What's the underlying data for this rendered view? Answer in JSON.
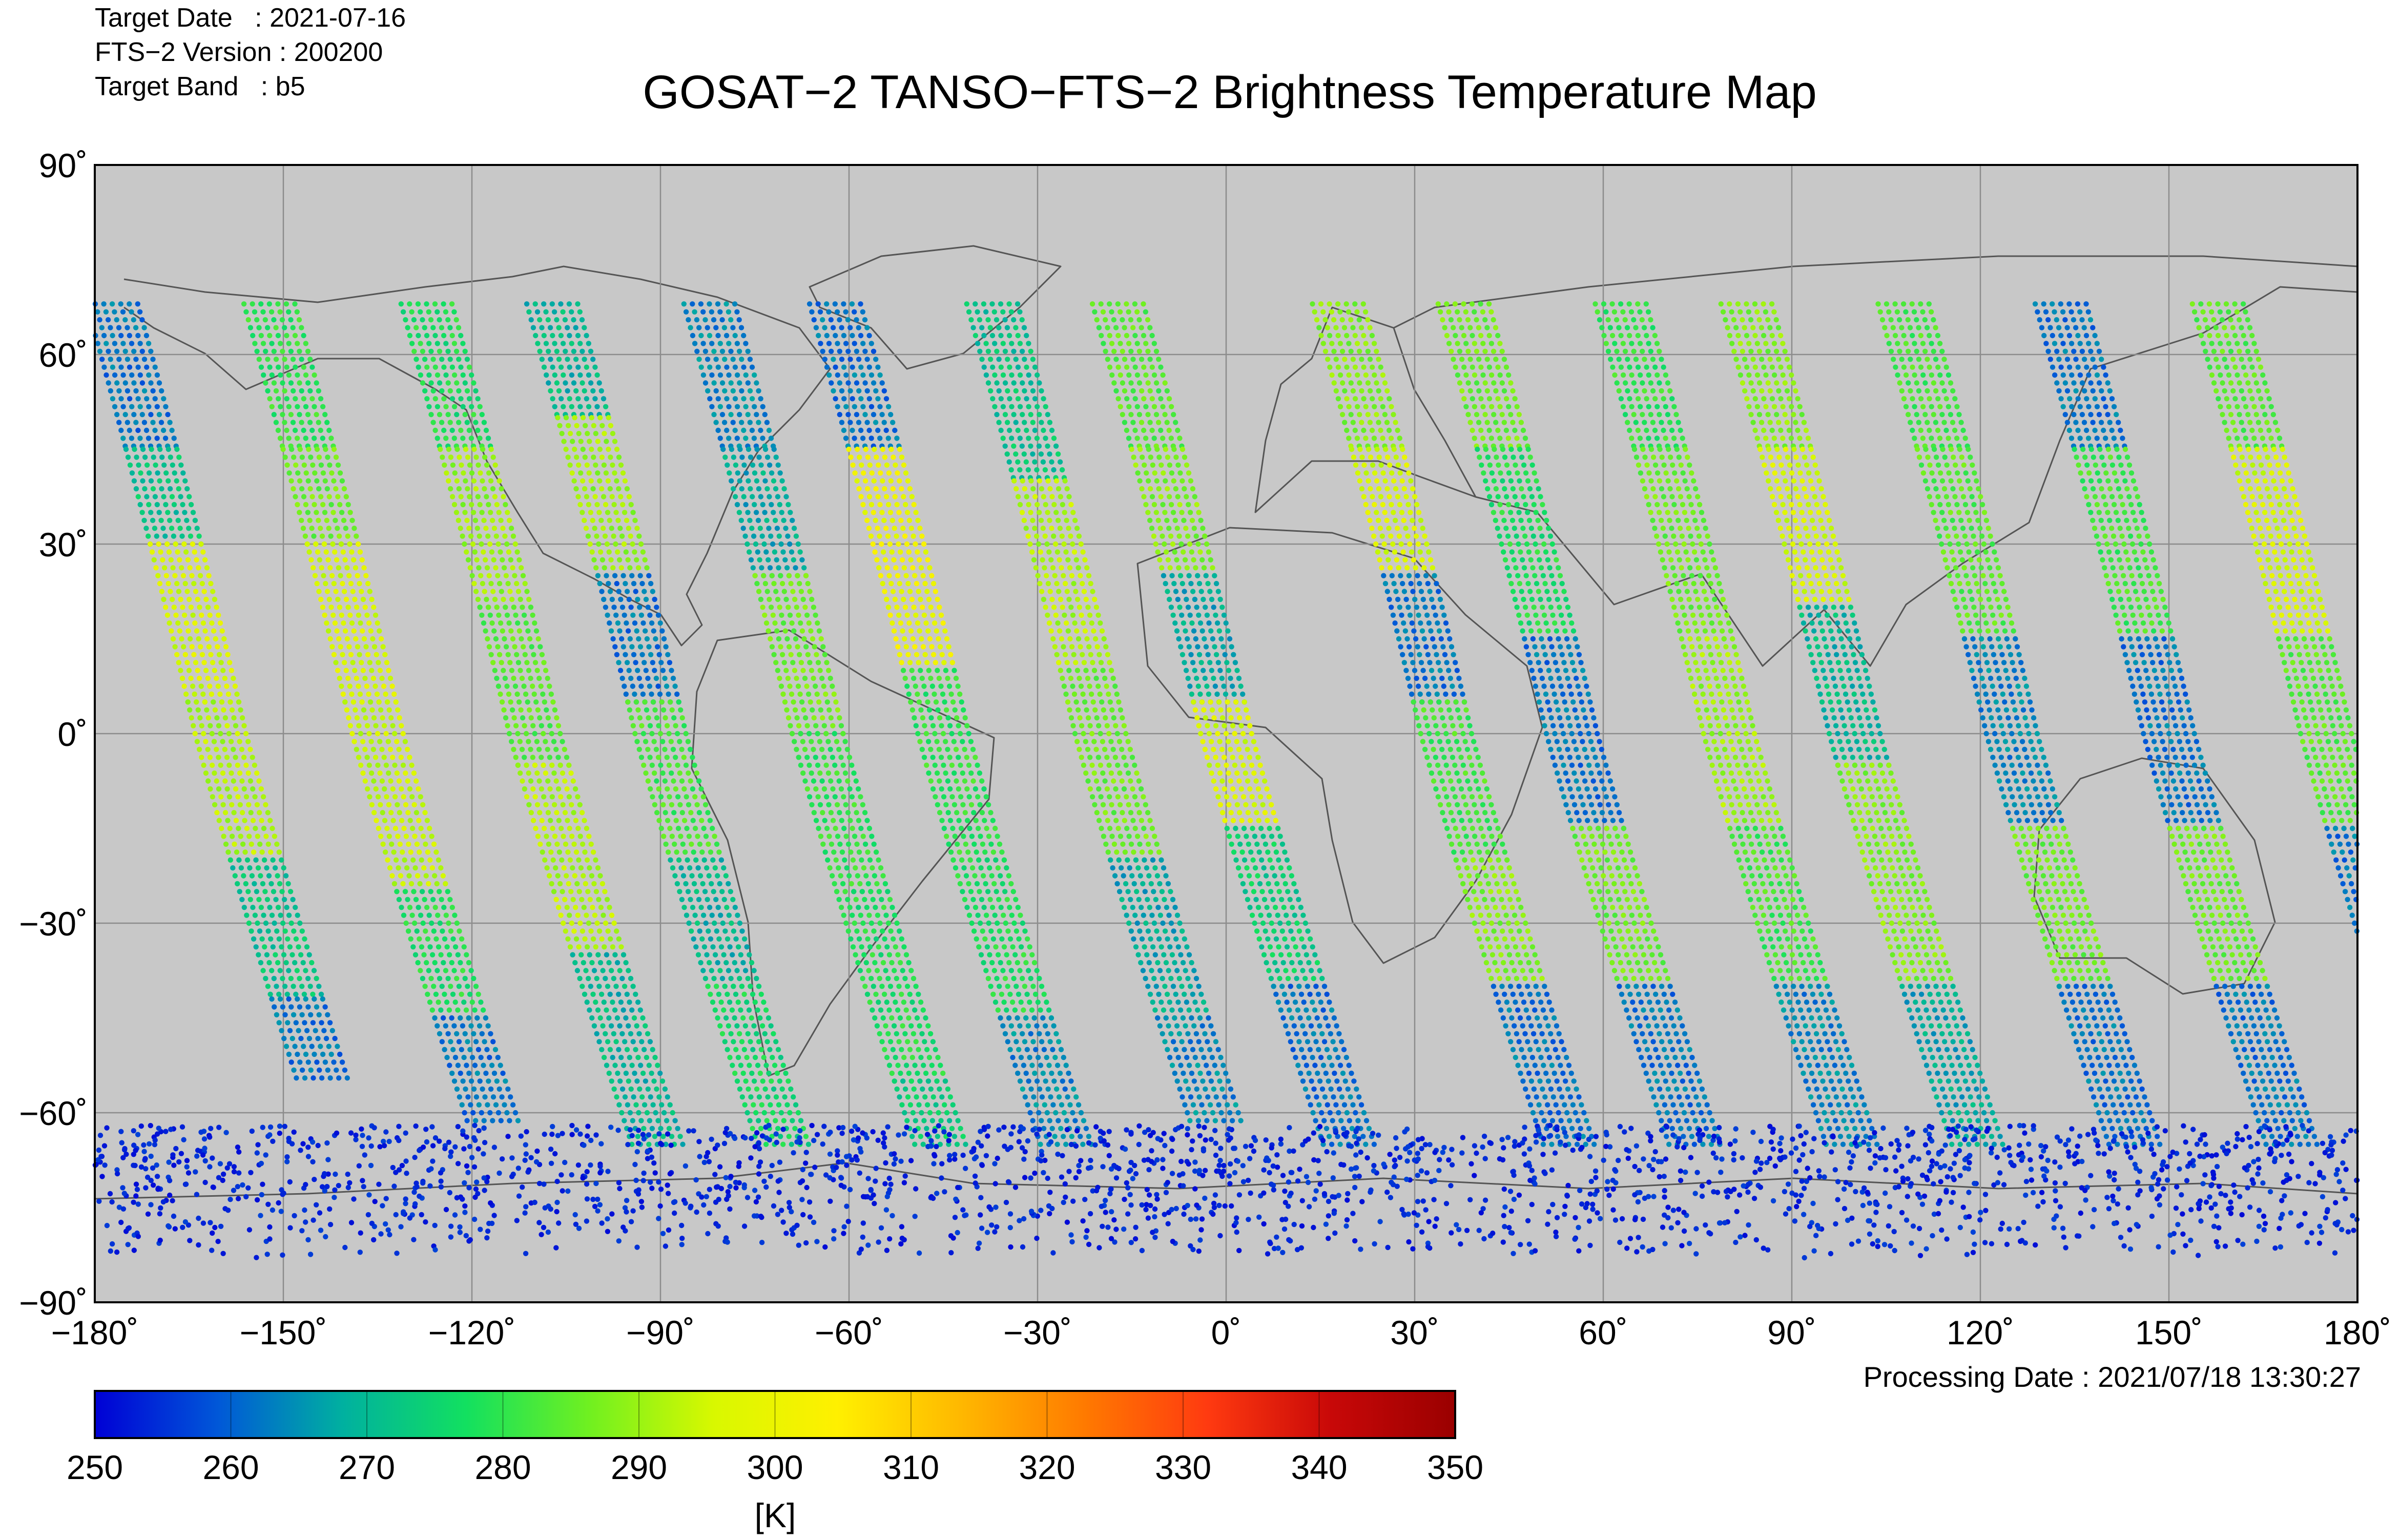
{
  "header": {
    "target_date_label": "Target Date",
    "target_date_value": "2021-07-16",
    "version_label": "FTS−2 Version",
    "version_value": "200200",
    "band_label": "Target Band",
    "band_value": "b5"
  },
  "title": "GOSAT−2 TANSO−FTS−2 Brightness Temperature Map",
  "map": {
    "lon_range": [
      -180,
      180
    ],
    "lat_range": [
      -90,
      90
    ],
    "background_color": "#c8c8c8",
    "grid_color": "#8c8c8c",
    "coast_color": "#555555",
    "x_ticks": [
      "−180˚",
      "−150˚",
      "−120˚",
      "−90˚",
      "−60˚",
      "−30˚",
      "0˚",
      "30˚",
      "60˚",
      "90˚",
      "120˚",
      "150˚",
      "180˚"
    ],
    "y_ticks": [
      "90˚",
      "60˚",
      "30˚",
      "0˚",
      "−30˚",
      "−60˚",
      "−90˚"
    ]
  },
  "processing_date_label": "Processing Date",
  "processing_date_value": "2021/07/18 13:30:27",
  "colorbar": {
    "min": 250,
    "max": 350,
    "tick_labels": [
      "250",
      "260",
      "270",
      "280",
      "290",
      "300",
      "310",
      "320",
      "330",
      "340",
      "350"
    ],
    "unit": "[K]",
    "colors": [
      "#0000d6",
      "#0058d8",
      "#00b0a0",
      "#12e060",
      "#70f020",
      "#d8f800",
      "#fff000",
      "#ffb800",
      "#ff7a00",
      "#ff3a10",
      "#c80808",
      "#9a0000"
    ]
  },
  "chart_data": {
    "type": "scatter",
    "title": "GOSAT−2 TANSO−FTS−2 Brightness Temperature Map",
    "xlabel": "",
    "ylabel": "",
    "xlim": [
      -180,
      180
    ],
    "ylim": [
      -90,
      90
    ],
    "value_unit": "[K]",
    "value_range": [
      250,
      350
    ],
    "swaths": [
      {
        "lon_at_lat60": -175,
        "segments": [
          [
            68,
            45,
            262
          ],
          [
            45,
            30,
            272
          ],
          [
            30,
            5,
            296
          ],
          [
            5,
            -20,
            292
          ],
          [
            -20,
            -42,
            272
          ],
          [
            -42,
            -55,
            262
          ]
        ]
      },
      {
        "lon_at_lat60": -150,
        "segments": [
          [
            68,
            45,
            280
          ],
          [
            45,
            30,
            286
          ],
          [
            30,
            5,
            296
          ],
          [
            5,
            -25,
            294
          ],
          [
            -25,
            -45,
            278
          ],
          [
            -45,
            -62,
            262
          ]
        ]
      },
      {
        "lon_at_lat60": -125,
        "segments": [
          [
            68,
            45,
            278
          ],
          [
            45,
            20,
            290
          ],
          [
            20,
            -5,
            284
          ],
          [
            -5,
            -35,
            292
          ],
          [
            -35,
            -65,
            270
          ]
        ]
      },
      {
        "lon_at_lat60": -105,
        "segments": [
          [
            68,
            50,
            270
          ],
          [
            50,
            25,
            290
          ],
          [
            25,
            5,
            262
          ],
          [
            5,
            -20,
            282
          ],
          [
            -20,
            -40,
            270
          ],
          [
            -40,
            -65,
            276
          ]
        ]
      },
      {
        "lon_at_lat60": -80,
        "segments": [
          [
            68,
            45,
            264
          ],
          [
            45,
            25,
            268
          ],
          [
            25,
            0,
            286
          ],
          [
            0,
            -25,
            280
          ],
          [
            -25,
            -55,
            278
          ],
          [
            -55,
            -65,
            274
          ]
        ]
      },
      {
        "lon_at_lat60": -60,
        "segments": [
          [
            68,
            45,
            262
          ],
          [
            45,
            10,
            300
          ],
          [
            10,
            -20,
            280
          ],
          [
            -20,
            -45,
            278
          ],
          [
            -45,
            -65,
            264
          ]
        ]
      },
      {
        "lon_at_lat60": -35,
        "segments": [
          [
            68,
            40,
            272
          ],
          [
            40,
            10,
            292
          ],
          [
            10,
            -20,
            286
          ],
          [
            -20,
            -45,
            268
          ],
          [
            -45,
            -62,
            264
          ]
        ]
      },
      {
        "lon_at_lat60": -15,
        "segments": [
          [
            68,
            45,
            284
          ],
          [
            45,
            25,
            288
          ],
          [
            25,
            5,
            268
          ],
          [
            5,
            -15,
            296
          ],
          [
            -15,
            -40,
            274
          ],
          [
            -40,
            -65,
            262
          ]
        ]
      },
      {
        "lon_at_lat60": 20,
        "segments": [
          [
            68,
            45,
            288
          ],
          [
            45,
            25,
            296
          ],
          [
            25,
            5,
            262
          ],
          [
            5,
            -20,
            282
          ],
          [
            -20,
            -40,
            288
          ],
          [
            -40,
            -65,
            262
          ]
        ]
      },
      {
        "lon_at_lat60": 40,
        "segments": [
          [
            68,
            45,
            286
          ],
          [
            45,
            15,
            278
          ],
          [
            15,
            -15,
            262
          ],
          [
            -15,
            -40,
            286
          ],
          [
            -40,
            -65,
            262
          ]
        ]
      },
      {
        "lon_at_lat60": 65,
        "segments": [
          [
            68,
            45,
            280
          ],
          [
            45,
            15,
            286
          ],
          [
            15,
            -15,
            290
          ],
          [
            -15,
            -40,
            282
          ],
          [
            -40,
            -65,
            264
          ]
        ]
      },
      {
        "lon_at_lat60": 85,
        "segments": [
          [
            68,
            45,
            288
          ],
          [
            45,
            20,
            296
          ],
          [
            20,
            -5,
            270
          ],
          [
            -5,
            -40,
            288
          ],
          [
            -40,
            -65,
            268
          ]
        ]
      },
      {
        "lon_at_lat60": 110,
        "segments": [
          [
            68,
            45,
            282
          ],
          [
            45,
            15,
            284
          ],
          [
            15,
            -15,
            264
          ],
          [
            -15,
            -40,
            286
          ],
          [
            -40,
            -65,
            262
          ]
        ]
      },
      {
        "lon_at_lat60": 135,
        "segments": [
          [
            68,
            45,
            262
          ],
          [
            45,
            15,
            282
          ],
          [
            15,
            -15,
            262
          ],
          [
            -15,
            -40,
            286
          ],
          [
            -40,
            -65,
            262
          ]
        ]
      },
      {
        "lon_at_lat60": 160,
        "segments": [
          [
            68,
            45,
            284
          ],
          [
            45,
            15,
            296
          ],
          [
            15,
            -15,
            284
          ],
          [
            -15,
            -40,
            262
          ],
          [
            -40,
            -65,
            262
          ]
        ]
      }
    ],
    "antarctic_band": {
      "lat_range": [
        -83,
        -62
      ],
      "value": 254
    }
  }
}
